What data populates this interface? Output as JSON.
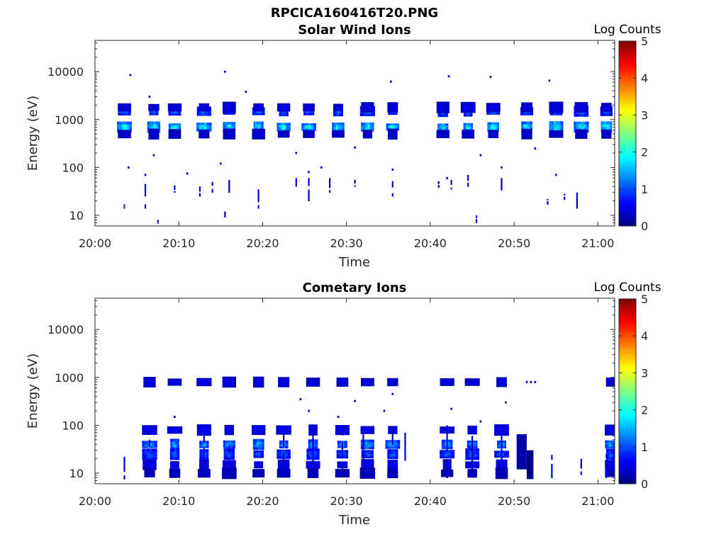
{
  "figure": {
    "title": "RPCICA160416T20.PNG"
  },
  "colorbar_stops": [
    "#00007f",
    "#0000ff",
    "#007fff",
    "#00ffff",
    "#7fff7f",
    "#ffff00",
    "#ff7f00",
    "#ff0000",
    "#7f0000"
  ],
  "chart_data": [
    {
      "type": "heatmap",
      "title": "Solar Wind Ions",
      "xlabel": "Time",
      "ylabel": "Energy (eV)",
      "y_scale": "log",
      "x_range": [
        "20:00",
        "21:02"
      ],
      "ylim": [
        6,
        45000
      ],
      "x_ticks": [
        "20:00",
        "20:10",
        "20:20",
        "20:30",
        "20:40",
        "20:50",
        "21:00"
      ],
      "y_ticks": [
        "10",
        "100",
        "1000",
        "10000"
      ],
      "colorbar": {
        "title": "Log Counts",
        "min": 0,
        "max": 5,
        "ticks": [
          "0",
          "1",
          "2",
          "3",
          "4",
          "5"
        ]
      },
      "peak_times": [
        "20:03.5",
        "20:07",
        "20:09.5",
        "20:13",
        "20:16",
        "20:19.5",
        "20:22.5",
        "20:25.5",
        "20:29",
        "20:32.5",
        "20:35.5",
        "20:41.5",
        "20:44.5",
        "20:47.5",
        "20:51.5",
        "20:55",
        "20:58",
        "21:01"
      ],
      "bands": [
        {
          "energy": 1500,
          "level": 1.3
        },
        {
          "energy": 700,
          "level": 2.1
        },
        {
          "energy": 1800,
          "level": 0.6
        },
        {
          "energy": 500,
          "level": 0.5
        }
      ],
      "scatter": [
        {
          "time": "20:04.2",
          "energy": 8500,
          "level": 0.3
        },
        {
          "time": "20:06.5",
          "energy": 3000,
          "level": 0.3
        },
        {
          "time": "20:15.5",
          "energy": 10000,
          "level": 0.3
        },
        {
          "time": "20:18",
          "energy": 3800,
          "level": 0.3
        },
        {
          "time": "20:35.3",
          "energy": 6200,
          "level": 0.3
        },
        {
          "time": "20:42.2",
          "energy": 8000,
          "level": 0.3
        },
        {
          "time": "20:47.2",
          "energy": 7800,
          "level": 0.3
        },
        {
          "time": "20:54.2",
          "energy": 6500,
          "level": 0.3
        },
        {
          "time": "20:04",
          "energy": 100,
          "level": 0.3
        },
        {
          "time": "20:06",
          "energy": 70,
          "level": 0.3
        },
        {
          "time": "20:07",
          "energy": 180,
          "level": 0.3
        },
        {
          "time": "20:11",
          "energy": 75,
          "level": 0.3
        },
        {
          "time": "20:15",
          "energy": 120,
          "level": 0.3
        },
        {
          "time": "20:24",
          "energy": 200,
          "level": 0.3
        },
        {
          "time": "20:25.5",
          "energy": 80,
          "level": 0.3
        },
        {
          "time": "20:27",
          "energy": 100,
          "level": 0.3
        },
        {
          "time": "20:31",
          "energy": 260,
          "level": 0.3
        },
        {
          "time": "20:35.5",
          "energy": 90,
          "level": 0.3
        },
        {
          "time": "20:42",
          "energy": 60,
          "level": 0.3
        },
        {
          "time": "20:46",
          "energy": 180,
          "level": 0.3
        },
        {
          "time": "20:48.5",
          "energy": 100,
          "level": 0.3
        },
        {
          "time": "20:55",
          "energy": 70,
          "level": 0.3
        },
        {
          "time": "20:52.5",
          "energy": 250,
          "level": 0.3
        }
      ],
      "streaks": [
        {
          "time": "20:03.5",
          "from": 14,
          "to": 17
        },
        {
          "time": "20:06",
          "from": 14,
          "to": 45
        },
        {
          "time": "20:07.5",
          "from": 6.5,
          "to": 8
        },
        {
          "time": "20:09.5",
          "from": 30,
          "to": 45
        },
        {
          "time": "20:12.5",
          "from": 25,
          "to": 40
        },
        {
          "time": "20:14",
          "from": 30,
          "to": 50
        },
        {
          "time": "20:15.5",
          "from": 8,
          "to": 12
        },
        {
          "time": "20:16",
          "from": 30,
          "to": 55
        },
        {
          "time": "20:19.5",
          "from": 14,
          "to": 35
        },
        {
          "time": "20:24",
          "from": 40,
          "to": 60
        },
        {
          "time": "20:25.5",
          "from": 20,
          "to": 60
        },
        {
          "time": "20:28",
          "from": 30,
          "to": 60
        },
        {
          "time": "20:31",
          "from": 40,
          "to": 55
        },
        {
          "time": "20:35.5",
          "from": 25,
          "to": 60
        },
        {
          "time": "20:41",
          "from": 38,
          "to": 55
        },
        {
          "time": "20:42.5",
          "from": 35,
          "to": 55
        },
        {
          "time": "20:44.5",
          "from": 40,
          "to": 70
        },
        {
          "time": "20:45.5",
          "from": 7,
          "to": 10
        },
        {
          "time": "20:48.5",
          "from": 30,
          "to": 60
        },
        {
          "time": "20:54",
          "from": 16,
          "to": 22
        },
        {
          "time": "20:56",
          "from": 20,
          "to": 30
        },
        {
          "time": "20:57.5",
          "from": 14,
          "to": 30
        }
      ]
    },
    {
      "type": "heatmap",
      "title": "Cometary Ions",
      "xlabel": "Time",
      "ylabel": "Energy (eV)",
      "y_scale": "log",
      "x_range": [
        "20:00",
        "21:02"
      ],
      "ylim": [
        6,
        45000
      ],
      "x_ticks": [
        "20:00",
        "20:10",
        "20:20",
        "20:30",
        "20:40",
        "20:50",
        "21:00"
      ],
      "y_ticks": [
        "10",
        "100",
        "1000",
        "10000"
      ],
      "colorbar": {
        "title": "Log Counts",
        "min": 0,
        "max": 5,
        "ticks": [
          "0",
          "1",
          "2",
          "3",
          "4",
          "5"
        ]
      },
      "peak_times": [
        "20:06.5",
        "20:09.5",
        "20:13",
        "20:16",
        "20:19.5",
        "20:22.5",
        "20:26",
        "20:29.5",
        "20:32.5",
        "20:35.5",
        "20:42",
        "20:45",
        "20:48.5",
        "21:01.5"
      ],
      "bands": [
        {
          "energy": 800,
          "level": 0.6
        },
        {
          "energy": 80,
          "level": 0.7
        },
        {
          "energy": 40,
          "level": 1.6
        },
        {
          "energy": 25,
          "level": 1.2
        },
        {
          "energy": 15,
          "level": 0.7
        },
        {
          "energy": 10,
          "level": 0.4
        }
      ],
      "scatter": [
        {
          "time": "20:24.5",
          "energy": 350,
          "level": 0.3
        },
        {
          "time": "20:25.5",
          "energy": 200,
          "level": 0.3
        },
        {
          "time": "20:29",
          "energy": 150,
          "level": 0.3
        },
        {
          "time": "20:31",
          "energy": 320,
          "level": 0.3
        },
        {
          "time": "20:34.5",
          "energy": 200,
          "level": 0.3
        },
        {
          "time": "20:35.5",
          "energy": 450,
          "level": 0.3
        },
        {
          "time": "20:42.5",
          "energy": 220,
          "level": 0.3
        },
        {
          "time": "20:49",
          "energy": 300,
          "level": 0.3
        },
        {
          "time": "20:09.5",
          "energy": 150,
          "level": 0.3
        },
        {
          "time": "20:46",
          "energy": 120,
          "level": 0.3
        },
        {
          "time": "20:52",
          "energy": 800,
          "level": 0.4
        },
        {
          "time": "20:52.5",
          "energy": 800,
          "level": 0.4
        },
        {
          "time": "20:51.5",
          "energy": 800,
          "level": 0.4
        }
      ],
      "streaks": [
        {
          "time": "20:03.5",
          "from": 7.5,
          "to": 22
        },
        {
          "time": "20:06.5",
          "from": 8,
          "to": 50
        },
        {
          "time": "20:13",
          "from": 10,
          "to": 60
        },
        {
          "time": "20:16",
          "from": 9,
          "to": 50
        },
        {
          "time": "20:22.5",
          "from": 10,
          "to": 70
        },
        {
          "time": "20:26",
          "from": 8,
          "to": 80
        },
        {
          "time": "20:29.5",
          "from": 10,
          "to": 90
        },
        {
          "time": "20:32",
          "from": 9,
          "to": 80
        },
        {
          "time": "20:35.5",
          "from": 10,
          "to": 80
        },
        {
          "time": "20:42",
          "from": 8,
          "to": 100
        },
        {
          "time": "20:45",
          "from": 8,
          "to": 60
        },
        {
          "time": "20:48.5",
          "from": 15,
          "to": 90
        },
        {
          "time": "20:54.5",
          "from": 8,
          "to": 30
        },
        {
          "time": "20:58",
          "from": 8,
          "to": 20
        },
        {
          "time": "21:01",
          "from": 8,
          "to": 25
        },
        {
          "time": "20:37",
          "from": 14,
          "to": 70
        }
      ],
      "blocks": [
        {
          "from_time": "20:50.3",
          "to_time": "20:51.5",
          "from": 12,
          "to": 65,
          "level": 0.2
        },
        {
          "from_time": "20:51.5",
          "to_time": "20:52.3",
          "from": 7.5,
          "to": 30,
          "level": 0.05
        }
      ]
    }
  ]
}
